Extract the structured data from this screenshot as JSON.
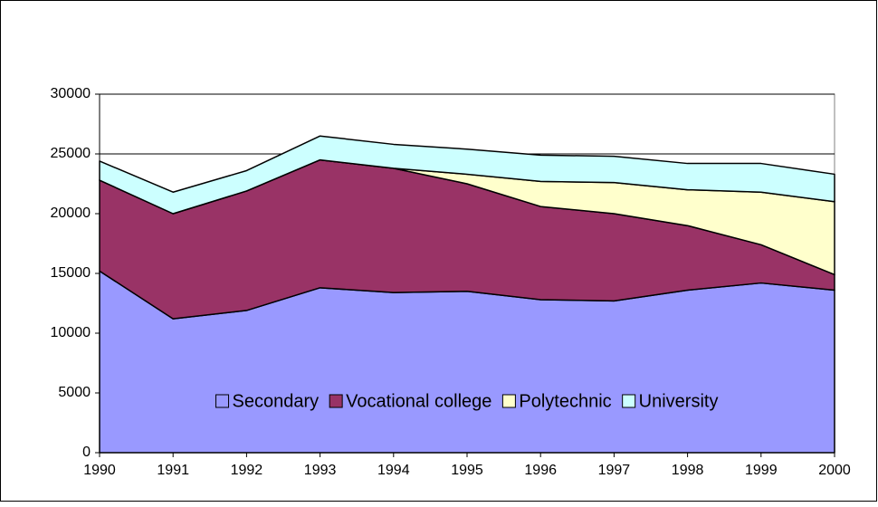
{
  "chart_data": {
    "type": "stacked_area",
    "categories": [
      "1990",
      "1991",
      "1992",
      "1993",
      "1994",
      "1995",
      "1996",
      "1997",
      "1998",
      "1999",
      "2000"
    ],
    "series": [
      {
        "name": "Secondary",
        "color": "#9999ff",
        "values": [
          15200,
          11200,
          11900,
          13800,
          13400,
          13500,
          12800,
          12700,
          13600,
          14200,
          13600
        ]
      },
      {
        "name": "Vocational college",
        "color": "#993366",
        "values": [
          7600,
          8800,
          10000,
          10700,
          10400,
          9000,
          7800,
          7300,
          5400,
          3200,
          1300
        ]
      },
      {
        "name": "Polytechnic",
        "color": "#ffffcc",
        "values": [
          0,
          0,
          0,
          0,
          0,
          800,
          2100,
          2600,
          3000,
          4400,
          6100
        ]
      },
      {
        "name": "University",
        "color": "#ccffff",
        "values": [
          1600,
          1800,
          1700,
          2000,
          2000,
          2100,
          2200,
          2200,
          2200,
          2400,
          2300
        ]
      }
    ],
    "ylim": [
      0,
      30000
    ],
    "yticks": [
      0,
      5000,
      10000,
      15000,
      20000,
      25000,
      30000
    ],
    "grid": true
  }
}
